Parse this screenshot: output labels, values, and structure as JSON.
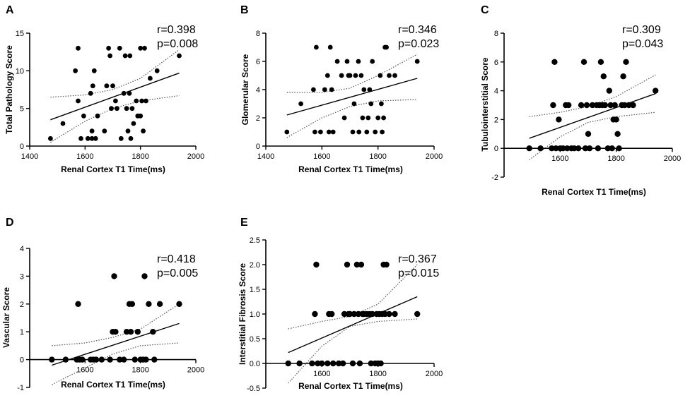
{
  "figure": {
    "colors": {
      "ink": "#000000",
      "ci": "#555555",
      "background": "#ffffff"
    }
  },
  "chart_data": [
    {
      "panel": "A",
      "type": "scatter",
      "xlabel": "Renal Cortex T1 Time(ms)",
      "ylabel": "Total Pathology Score",
      "xlim": [
        1400,
        2000
      ],
      "ylim": [
        0,
        15
      ],
      "xticks": [
        1400,
        1600,
        1800,
        2000
      ],
      "yticks": [
        0,
        5,
        10,
        15
      ],
      "annotation": {
        "r": "r=0.398",
        "p": "p=0.008"
      },
      "points": [
        [
          1475,
          1
        ],
        [
          1520,
          3
        ],
        [
          1565,
          10
        ],
        [
          1575,
          13
        ],
        [
          1575,
          6
        ],
        [
          1585,
          1
        ],
        [
          1595,
          4
        ],
        [
          1610,
          1
        ],
        [
          1620,
          7
        ],
        [
          1625,
          2
        ],
        [
          1625,
          1
        ],
        [
          1628,
          8
        ],
        [
          1633,
          10
        ],
        [
          1638,
          1
        ],
        [
          1645,
          4
        ],
        [
          1670,
          2
        ],
        [
          1678,
          8
        ],
        [
          1685,
          13
        ],
        [
          1690,
          12
        ],
        [
          1695,
          5
        ],
        [
          1700,
          8
        ],
        [
          1710,
          6
        ],
        [
          1715,
          5
        ],
        [
          1725,
          13
        ],
        [
          1730,
          1
        ],
        [
          1740,
          7
        ],
        [
          1745,
          12
        ],
        [
          1750,
          5
        ],
        [
          1755,
          2
        ],
        [
          1760,
          7
        ],
        [
          1762,
          12
        ],
        [
          1765,
          1
        ],
        [
          1770,
          5
        ],
        [
          1775,
          3
        ],
        [
          1785,
          6
        ],
        [
          1790,
          4
        ],
        [
          1800,
          4
        ],
        [
          1800,
          13
        ],
        [
          1805,
          6
        ],
        [
          1810,
          2
        ],
        [
          1815,
          13
        ],
        [
          1820,
          6
        ],
        [
          1835,
          9
        ],
        [
          1860,
          10
        ],
        [
          1940,
          12
        ]
      ],
      "fit": {
        "x": [
          1475,
          1940
        ],
        "y": [
          3.5,
          9.7
        ]
      },
      "ci_upper": {
        "x": [
          1475,
          1600,
          1700,
          1800,
          1940
        ],
        "y": [
          6.5,
          6.8,
          7.5,
          9.0,
          12.8
        ]
      },
      "ci_lower": {
        "x": [
          1475,
          1600,
          1700,
          1800,
          1940
        ],
        "y": [
          0.5,
          3.3,
          5.0,
          6.0,
          6.7
        ]
      }
    },
    {
      "panel": "B",
      "type": "scatter",
      "xlabel": "Renal Cortex T1 Time(ms)",
      "ylabel": "Glomerular Score",
      "xlim": [
        1400,
        2000
      ],
      "ylim": [
        0,
        8
      ],
      "xticks": [
        1400,
        1600,
        1800,
        2000
      ],
      "yticks": [
        0,
        2,
        4,
        6,
        8
      ],
      "annotation": {
        "r": "r=0.346",
        "p": "p=0.023"
      },
      "points": [
        [
          1475,
          1
        ],
        [
          1525,
          3
        ],
        [
          1570,
          4
        ],
        [
          1575,
          1
        ],
        [
          1580,
          7
        ],
        [
          1595,
          1
        ],
        [
          1610,
          4
        ],
        [
          1620,
          5
        ],
        [
          1625,
          1
        ],
        [
          1630,
          7
        ],
        [
          1635,
          4
        ],
        [
          1640,
          1
        ],
        [
          1655,
          6
        ],
        [
          1670,
          5
        ],
        [
          1680,
          2
        ],
        [
          1690,
          6
        ],
        [
          1695,
          5
        ],
        [
          1700,
          5
        ],
        [
          1710,
          1
        ],
        [
          1715,
          3
        ],
        [
          1720,
          5
        ],
        [
          1730,
          6
        ],
        [
          1732,
          1
        ],
        [
          1740,
          5
        ],
        [
          1745,
          2
        ],
        [
          1750,
          4
        ],
        [
          1760,
          1
        ],
        [
          1765,
          2
        ],
        [
          1770,
          4
        ],
        [
          1775,
          3
        ],
        [
          1780,
          6
        ],
        [
          1790,
          1
        ],
        [
          1800,
          2
        ],
        [
          1808,
          5
        ],
        [
          1812,
          3
        ],
        [
          1815,
          1
        ],
        [
          1820,
          2
        ],
        [
          1825,
          7
        ],
        [
          1830,
          7
        ],
        [
          1840,
          5
        ],
        [
          1860,
          5
        ],
        [
          1940,
          6
        ]
      ],
      "fit": {
        "x": [
          1475,
          1940
        ],
        "y": [
          2.2,
          4.8
        ]
      },
      "ci_upper": {
        "x": [
          1475,
          1600,
          1700,
          1800,
          1940
        ],
        "y": [
          3.8,
          3.8,
          4.1,
          5.0,
          6.5
        ]
      },
      "ci_lower": {
        "x": [
          1475,
          1600,
          1700,
          1800,
          1940
        ],
        "y": [
          0.6,
          2.0,
          2.8,
          3.2,
          3.3
        ]
      }
    },
    {
      "panel": "C",
      "type": "scatter",
      "xlabel": "Renal Cortex T1 Time(ms)",
      "ylabel": "Tubulointerstitial Score",
      "xlim": [
        1400,
        2000
      ],
      "ylim": [
        -2,
        8
      ],
      "xticks": [
        1600,
        1800,
        2000
      ],
      "yticks": [
        -2,
        0,
        2,
        4,
        6,
        8
      ],
      "annotation": {
        "r": "r=0.309",
        "p": "p=0.043"
      },
      "points": [
        [
          1490,
          0
        ],
        [
          1530,
          0
        ],
        [
          1570,
          0
        ],
        [
          1575,
          3
        ],
        [
          1580,
          6
        ],
        [
          1585,
          0
        ],
        [
          1595,
          2
        ],
        [
          1600,
          0
        ],
        [
          1610,
          0
        ],
        [
          1620,
          3
        ],
        [
          1625,
          0
        ],
        [
          1630,
          3
        ],
        [
          1640,
          0
        ],
        [
          1650,
          0
        ],
        [
          1665,
          0
        ],
        [
          1675,
          3
        ],
        [
          1685,
          6
        ],
        [
          1690,
          0
        ],
        [
          1695,
          3
        ],
        [
          1700,
          1
        ],
        [
          1705,
          0
        ],
        [
          1715,
          3
        ],
        [
          1730,
          3
        ],
        [
          1735,
          0
        ],
        [
          1740,
          3
        ],
        [
          1745,
          6
        ],
        [
          1750,
          3
        ],
        [
          1755,
          5
        ],
        [
          1760,
          3
        ],
        [
          1770,
          0
        ],
        [
          1775,
          4
        ],
        [
          1780,
          3
        ],
        [
          1785,
          0
        ],
        [
          1790,
          2
        ],
        [
          1795,
          3
        ],
        [
          1800,
          2
        ],
        [
          1805,
          1
        ],
        [
          1810,
          0
        ],
        [
          1820,
          3
        ],
        [
          1825,
          5
        ],
        [
          1830,
          3
        ],
        [
          1835,
          6
        ],
        [
          1845,
          3
        ],
        [
          1860,
          3
        ],
        [
          1940,
          4
        ]
      ],
      "fit": {
        "x": [
          1490,
          1940
        ],
        "y": [
          0.7,
          3.8
        ]
      },
      "ci_upper": {
        "x": [
          1490,
          1600,
          1700,
          1800,
          1940
        ],
        "y": [
          2.2,
          2.5,
          2.9,
          3.6,
          5.1
        ]
      },
      "ci_lower": {
        "x": [
          1490,
          1600,
          1700,
          1800,
          1940
        ],
        "y": [
          -0.8,
          0.8,
          1.8,
          2.2,
          2.5
        ]
      }
    },
    {
      "panel": "D",
      "type": "scatter",
      "xlabel": "Renal Cortex T1 Time(ms)",
      "ylabel": "Vascular Score",
      "xlim": [
        1400,
        2000
      ],
      "ylim": [
        -1,
        4
      ],
      "xticks": [
        1600,
        1800,
        2000
      ],
      "yticks": [
        -1,
        0,
        1,
        2,
        3,
        4
      ],
      "annotation": {
        "r": "r=0.418",
        "p": "p=0.005"
      },
      "points": [
        [
          1480,
          0
        ],
        [
          1530,
          0
        ],
        [
          1570,
          0
        ],
        [
          1575,
          2
        ],
        [
          1580,
          0
        ],
        [
          1590,
          0
        ],
        [
          1620,
          0
        ],
        [
          1630,
          0
        ],
        [
          1640,
          0
        ],
        [
          1660,
          0
        ],
        [
          1690,
          0
        ],
        [
          1700,
          1
        ],
        [
          1705,
          3
        ],
        [
          1710,
          1
        ],
        [
          1725,
          0
        ],
        [
          1740,
          0
        ],
        [
          1750,
          1
        ],
        [
          1760,
          2
        ],
        [
          1765,
          1
        ],
        [
          1770,
          2
        ],
        [
          1780,
          0
        ],
        [
          1790,
          1
        ],
        [
          1800,
          0
        ],
        [
          1810,
          0
        ],
        [
          1815,
          3
        ],
        [
          1820,
          0
        ],
        [
          1830,
          2
        ],
        [
          1845,
          1
        ],
        [
          1850,
          0
        ],
        [
          1870,
          2
        ],
        [
          1940,
          2
        ]
      ],
      "fit": {
        "x": [
          1480,
          1940
        ],
        "y": [
          -0.2,
          1.3
        ]
      },
      "ci_upper": {
        "x": [
          1480,
          1600,
          1700,
          1800,
          1940
        ],
        "y": [
          0.5,
          0.6,
          0.8,
          1.1,
          2.0
        ]
      },
      "ci_lower": {
        "x": [
          1480,
          1600,
          1700,
          1800,
          1940
        ],
        "y": [
          -0.9,
          -0.3,
          0.2,
          0.5,
          0.6
        ]
      }
    },
    {
      "panel": "E",
      "type": "scatter",
      "xlabel": "Renal Cortex T1 Time(ms)",
      "ylabel": "Interstitial Fibrosis Score",
      "xlim": [
        1400,
        2000
      ],
      "ylim": [
        -0.5,
        2.5
      ],
      "xticks": [
        1600,
        1800,
        2000
      ],
      "yticks": [
        -0.5,
        0.0,
        0.5,
        1.0,
        1.5,
        2.0,
        2.5
      ],
      "yticklabels": [
        "-0.5",
        "0.0",
        "0.5",
        "1.0",
        "1.5",
        "2.0",
        "2.5"
      ],
      "annotation": {
        "r": "r=0.367",
        "p": "p=0.015"
      },
      "points": [
        [
          1480,
          0
        ],
        [
          1520,
          0
        ],
        [
          1565,
          0
        ],
        [
          1575,
          1
        ],
        [
          1580,
          2
        ],
        [
          1585,
          0
        ],
        [
          1600,
          0
        ],
        [
          1620,
          0
        ],
        [
          1625,
          1
        ],
        [
          1635,
          1
        ],
        [
          1640,
          0
        ],
        [
          1660,
          0
        ],
        [
          1675,
          0
        ],
        [
          1680,
          1
        ],
        [
          1690,
          2
        ],
        [
          1695,
          1
        ],
        [
          1700,
          1
        ],
        [
          1710,
          0
        ],
        [
          1715,
          1
        ],
        [
          1725,
          2
        ],
        [
          1730,
          1
        ],
        [
          1735,
          0
        ],
        [
          1740,
          2
        ],
        [
          1745,
          1
        ],
        [
          1750,
          1
        ],
        [
          1760,
          1
        ],
        [
          1770,
          1
        ],
        [
          1775,
          0
        ],
        [
          1780,
          1
        ],
        [
          1790,
          0
        ],
        [
          1795,
          1
        ],
        [
          1800,
          0
        ],
        [
          1805,
          1
        ],
        [
          1810,
          0
        ],
        [
          1815,
          1
        ],
        [
          1820,
          2
        ],
        [
          1825,
          1
        ],
        [
          1830,
          2
        ],
        [
          1840,
          1
        ],
        [
          1860,
          1
        ],
        [
          1940,
          1
        ]
      ],
      "fit": {
        "x": [
          1480,
          1940
        ],
        "y": [
          0.22,
          1.35
        ]
      },
      "ci_upper": {
        "x": [
          1480,
          1600,
          1700,
          1800,
          1940
        ],
        "y": [
          0.7,
          0.85,
          0.95,
          1.2,
          2.0
        ]
      },
      "ci_lower": {
        "x": [
          1480,
          1600,
          1700,
          1800,
          1940
        ],
        "y": [
          -0.4,
          0.35,
          0.75,
          0.85,
          0.9
        ]
      }
    }
  ]
}
